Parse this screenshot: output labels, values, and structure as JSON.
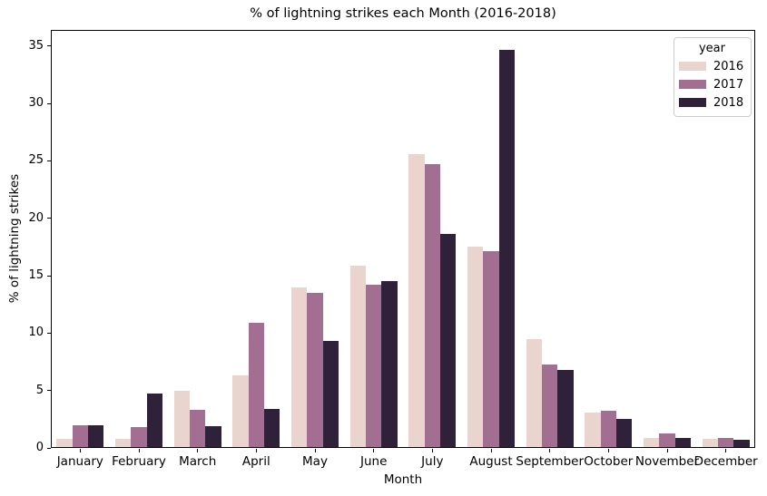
{
  "chart_data": {
    "type": "bar",
    "title": "% of lightning strikes each Month (2016-2018)",
    "xlabel": "Month",
    "ylabel": "% of lightning strikes",
    "categories": [
      "January",
      "February",
      "March",
      "April",
      "May",
      "June",
      "July",
      "August",
      "September",
      "October",
      "November",
      "December"
    ],
    "series": [
      {
        "name": "2016",
        "color": "#e9d4ce",
        "values": [
          0.8,
          0.8,
          5.0,
          6.3,
          14.0,
          15.9,
          25.6,
          17.5,
          9.5,
          3.1,
          0.9,
          0.8
        ]
      },
      {
        "name": "2017",
        "color": "#a26e92",
        "values": [
          2.0,
          1.8,
          3.3,
          10.9,
          13.5,
          14.2,
          24.7,
          17.1,
          7.3,
          3.2,
          1.3,
          0.9
        ]
      },
      {
        "name": "2018",
        "color": "#2e2139",
        "values": [
          2.0,
          4.7,
          1.9,
          3.4,
          9.3,
          14.5,
          18.6,
          34.7,
          6.8,
          2.5,
          0.9,
          0.7
        ]
      }
    ],
    "yticks": [
      0,
      5,
      10,
      15,
      20,
      25,
      30,
      35
    ],
    "ylim": [
      0,
      36.4
    ],
    "grid": false,
    "legend": {
      "title": "year",
      "position": "upper right"
    },
    "colors": {
      "background": "#ffffff",
      "spine": "#000000",
      "legend_border": "#cccccc"
    }
  }
}
